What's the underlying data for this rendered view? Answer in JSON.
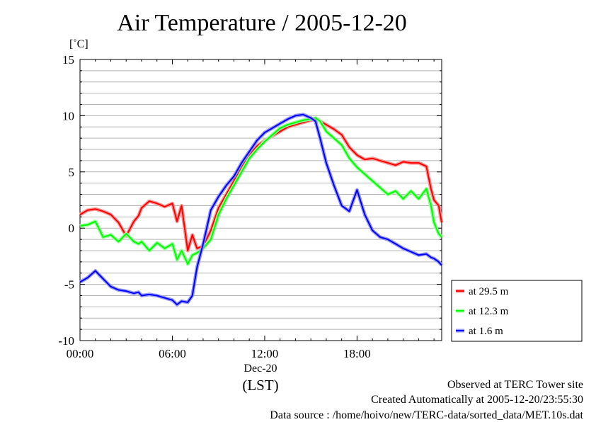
{
  "chart_data": {
    "type": "line",
    "title": "Air Temperature / 2005-12-20",
    "ylabel": "[˚C]",
    "xlabel": "(LST)",
    "x_date_label": "Dec-20",
    "ylim": [
      -10,
      15
    ],
    "yticks": [
      15,
      10,
      5,
      0,
      -5,
      -10
    ],
    "xlim": [
      0,
      23.5
    ],
    "xticks": [
      {
        "value": 0,
        "label": "00:00"
      },
      {
        "value": 6,
        "label": "06:00"
      },
      {
        "value": 12,
        "label": "12:00"
      },
      {
        "value": 18,
        "label": "18:00"
      }
    ],
    "grid": true,
    "legend_position": "right",
    "series": [
      {
        "name": "at 29.5 m",
        "color": "#ff0000",
        "x": [
          0,
          0.5,
          1,
          1.5,
          2,
          2.5,
          3,
          3.5,
          3.8,
          4,
          4.5,
          5,
          5.5,
          6,
          6.3,
          6.6,
          7,
          7.3,
          7.6,
          8,
          8.5,
          9,
          9.5,
          10,
          10.5,
          11,
          11.5,
          12,
          12.5,
          13,
          13.5,
          14,
          14.5,
          15,
          15.3,
          15.6,
          16,
          16.5,
          17,
          17.5,
          18,
          18.5,
          19,
          19.5,
          20,
          20.5,
          21,
          21.5,
          22,
          22.5,
          22.8,
          23,
          23.3,
          23.5
        ],
        "y": [
          1.2,
          1.6,
          1.7,
          1.5,
          1.2,
          0.5,
          -0.7,
          0.6,
          1.1,
          1.8,
          2.4,
          2.2,
          1.9,
          2.2,
          0.6,
          2.0,
          -2.0,
          -0.6,
          -1.8,
          -1.6,
          -0.2,
          1.8,
          3.0,
          4.2,
          5.5,
          6.5,
          7.3,
          7.8,
          8.2,
          8.6,
          9.0,
          9.2,
          9.4,
          9.6,
          9.7,
          9.5,
          9.2,
          8.8,
          8.3,
          7.2,
          6.5,
          6.1,
          6.2,
          6.0,
          5.8,
          5.6,
          5.9,
          5.8,
          5.8,
          5.5,
          3.5,
          2.5,
          2.0,
          0.5
        ]
      },
      {
        "name": "at 12.3 m",
        "color": "#00ff00",
        "x": [
          0,
          0.5,
          1,
          1.5,
          2,
          2.5,
          3,
          3.5,
          3.8,
          4,
          4.5,
          5,
          5.5,
          6,
          6.3,
          6.6,
          7,
          7.3,
          7.6,
          8,
          8.5,
          9,
          9.5,
          10,
          10.5,
          11,
          11.5,
          12,
          12.5,
          13,
          13.5,
          14,
          14.5,
          15,
          15.3,
          15.6,
          16,
          16.5,
          17,
          17.5,
          18,
          18.5,
          19,
          19.5,
          20,
          20.5,
          21,
          21.5,
          22,
          22.5,
          22.8,
          23,
          23.3,
          23.5
        ],
        "y": [
          0.2,
          0.3,
          0.6,
          -0.8,
          -0.6,
          -1.2,
          -0.5,
          -1.2,
          -1.4,
          -1.2,
          -2.0,
          -1.3,
          -1.8,
          -1.4,
          -2.8,
          -2.0,
          -3.2,
          -2.4,
          -2.2,
          -1.8,
          -1.0,
          1.2,
          2.6,
          3.8,
          5.0,
          6.2,
          7.0,
          7.7,
          8.3,
          8.9,
          9.2,
          9.4,
          9.6,
          9.7,
          9.8,
          9.5,
          8.6,
          8.0,
          7.4,
          6.2,
          5.4,
          4.8,
          4.2,
          3.6,
          3.0,
          3.3,
          2.6,
          3.3,
          2.6,
          3.5,
          2.0,
          0.5,
          -0.5,
          -0.8
        ]
      },
      {
        "name": "at 1.6 m",
        "color": "#0000ff",
        "x": [
          0,
          0.5,
          1,
          1.5,
          2,
          2.5,
          3,
          3.5,
          3.8,
          4,
          4.5,
          5,
          5.5,
          6,
          6.3,
          6.6,
          7,
          7.3,
          7.6,
          8,
          8.5,
          9,
          9.5,
          10,
          10.5,
          11,
          11.5,
          12,
          12.5,
          13,
          13.5,
          14,
          14.5,
          15,
          15.3,
          15.6,
          16,
          16.5,
          17,
          17.5,
          18,
          18.5,
          19,
          19.5,
          20,
          20.5,
          21,
          21.5,
          22,
          22.5,
          22.8,
          23,
          23.3,
          23.5
        ],
        "y": [
          -4.8,
          -4.4,
          -3.8,
          -4.5,
          -5.2,
          -5.5,
          -5.6,
          -5.8,
          -5.7,
          -6.0,
          -5.9,
          -6.0,
          -6.2,
          -6.4,
          -6.8,
          -6.5,
          -6.6,
          -6.0,
          -3.5,
          -1.4,
          1.6,
          2.8,
          3.8,
          4.6,
          5.8,
          6.8,
          7.8,
          8.5,
          8.9,
          9.3,
          9.7,
          10.0,
          10.1,
          9.8,
          9.5,
          8.0,
          5.8,
          3.8,
          2.0,
          1.5,
          3.4,
          1.2,
          -0.2,
          -0.8,
          -1.0,
          -1.4,
          -1.8,
          -2.1,
          -2.4,
          -2.3,
          -2.6,
          -2.7,
          -3.0,
          -3.3
        ]
      }
    ]
  },
  "footer": {
    "observed": "Observed at TERC Tower site",
    "created": "Created Automatically at 2005-12-20/23:55:30",
    "source": "Data source : /home/hoivo/new/TERC-data/sorted_data/MET.10s.dat"
  }
}
